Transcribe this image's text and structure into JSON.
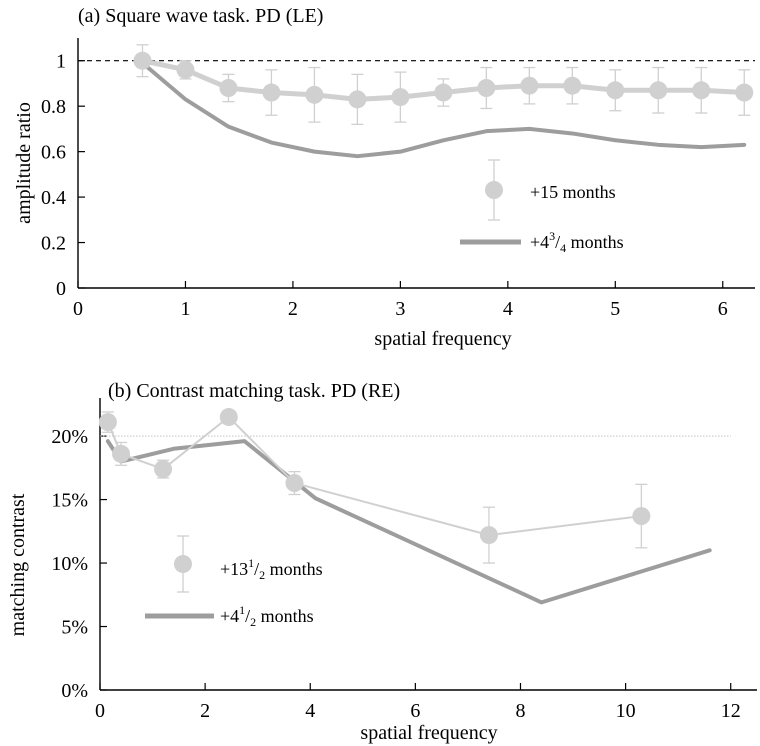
{
  "chart_data": [
    {
      "type": "line",
      "title": "(a) Square wave task. PD (LE)",
      "xlabel": "spatial frequency",
      "ylabel": "amplitude ratio",
      "xlim": [
        0,
        6.3
      ],
      "ylim": [
        0,
        1.1
      ],
      "x_ticks": [
        "0",
        "1",
        "2",
        "3",
        "4",
        "5",
        "6"
      ],
      "y_ticks": [
        "0",
        "0.2",
        "0.4",
        "0.6",
        "0.8",
        "1"
      ],
      "reference_line": {
        "y": 1,
        "style": "dashed"
      },
      "series": [
        {
          "name_prefix": "+15 months",
          "marker": "circle",
          "color": "#d0d0d0",
          "x": [
            0.6,
            1.0,
            1.4,
            1.8,
            2.2,
            2.6,
            3.0,
            3.4,
            3.8,
            4.2,
            4.6,
            5.0,
            5.4,
            5.8,
            6.2
          ],
          "y": [
            1.0,
            0.96,
            0.88,
            0.86,
            0.85,
            0.83,
            0.84,
            0.86,
            0.88,
            0.89,
            0.89,
            0.87,
            0.87,
            0.87,
            0.86
          ],
          "err": [
            0.07,
            0.04,
            0.06,
            0.1,
            0.12,
            0.11,
            0.11,
            0.06,
            0.09,
            0.08,
            0.08,
            0.09,
            0.1,
            0.1,
            0.1
          ]
        },
        {
          "name_prefix": "+4",
          "name_sup": "3",
          "name_sub": "4",
          "name_suffix": " months",
          "marker": "none",
          "color": "#9d9d9d",
          "x": [
            0.6,
            1.0,
            1.4,
            1.8,
            2.2,
            2.6,
            3.0,
            3.4,
            3.8,
            4.2,
            4.6,
            5.0,
            5.4,
            5.8,
            6.2
          ],
          "y": [
            0.99,
            0.83,
            0.71,
            0.64,
            0.6,
            0.58,
            0.6,
            0.65,
            0.69,
            0.7,
            0.68,
            0.65,
            0.63,
            0.62,
            0.63
          ]
        }
      ]
    },
    {
      "type": "line",
      "title": "(b) Contrast matching task. PD (RE)",
      "xlabel": "spatial frequency",
      "ylabel": "matching contrast",
      "xlim": [
        0,
        12.5
      ],
      "ylim": [
        0,
        23
      ],
      "x_ticks": [
        "0",
        "2",
        "4",
        "6",
        "8",
        "10",
        "12"
      ],
      "y_ticks": [
        "0%",
        "5%",
        "10%",
        "15%",
        "20%"
      ],
      "reference_line": {
        "y": 20,
        "style": "dotted"
      },
      "series": [
        {
          "name_prefix": "+13",
          "name_sup": "1",
          "name_sub": "2",
          "name_suffix": " months",
          "marker": "circle",
          "color": "#d0d0d0",
          "x": [
            0.15,
            0.4,
            1.2,
            2.45,
            3.7,
            7.4,
            10.3
          ],
          "y": [
            21.1,
            18.6,
            17.4,
            21.5,
            16.3,
            12.2,
            13.7
          ],
          "err": [
            0.8,
            0.9,
            0.7,
            0.0,
            0.9,
            2.2,
            2.5
          ]
        },
        {
          "name_prefix": "+4",
          "name_sup": "1",
          "name_sub": "2",
          "name_suffix": " months",
          "marker": "none",
          "color": "#9d9d9d",
          "x": [
            0.15,
            0.4,
            1.4,
            2.75,
            4.1,
            8.4,
            11.6
          ],
          "y": [
            19.6,
            18.0,
            19.0,
            19.6,
            15.1,
            6.9,
            11.0
          ]
        }
      ]
    }
  ]
}
